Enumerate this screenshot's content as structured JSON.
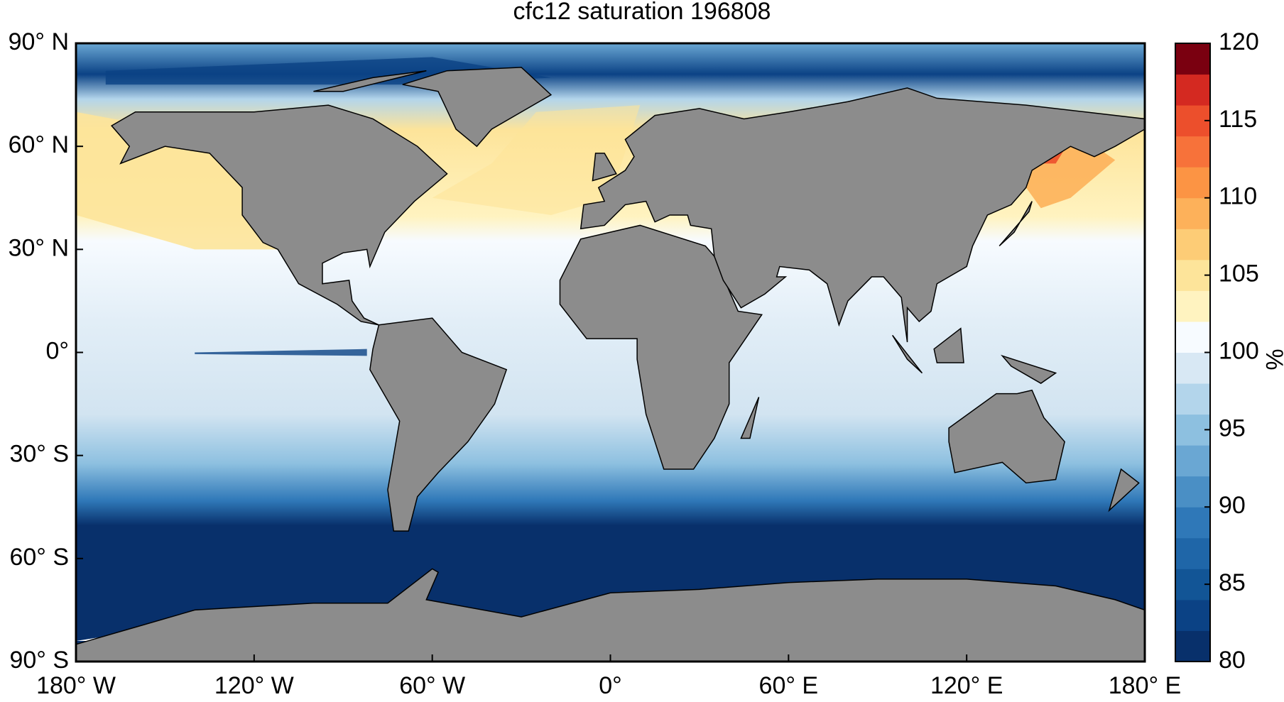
{
  "chart_data": {
    "type": "map",
    "title": "cfc12 saturation 196808",
    "xlim": [
      -180,
      180
    ],
    "xticks": [
      {
        "value": -180,
        "label": "180° W"
      },
      {
        "value": -120,
        "label": "120° W"
      },
      {
        "value": -60,
        "label": "60° W"
      },
      {
        "value": 0,
        "label": "0°"
      },
      {
        "value": 60,
        "label": "60° E"
      },
      {
        "value": 120,
        "label": "120° E"
      },
      {
        "value": 180,
        "label": "180° E"
      }
    ],
    "ylim": [
      -90,
      90
    ],
    "yticks": [
      {
        "value": 90,
        "label": "90° N"
      },
      {
        "value": 60,
        "label": "60° N"
      },
      {
        "value": 30,
        "label": "30° N"
      },
      {
        "value": 0,
        "label": "0°"
      },
      {
        "value": -30,
        "label": "30° S"
      },
      {
        "value": -60,
        "label": "60° S"
      },
      {
        "value": -90,
        "label": "90° S"
      }
    ],
    "colorbar": {
      "label": "%",
      "clim": [
        80,
        120
      ],
      "ticks": [
        80,
        85,
        90,
        95,
        100,
        105,
        110,
        115,
        120
      ],
      "colormap": [
        "#08306b",
        "#0b4285",
        "#125596",
        "#1f66a8",
        "#2f78b8",
        "#4a8fc5",
        "#6aa7d3",
        "#8dc0e0",
        "#b3d5eb",
        "#d8e8f4",
        "#f7fbff",
        "#fff3c0",
        "#fde49a",
        "#fdcc76",
        "#fdb15a",
        "#fc9444",
        "#f7723a",
        "#ec4f2c",
        "#d42921",
        "#7a0010"
      ]
    },
    "land_color": "#8c8c8c"
  }
}
